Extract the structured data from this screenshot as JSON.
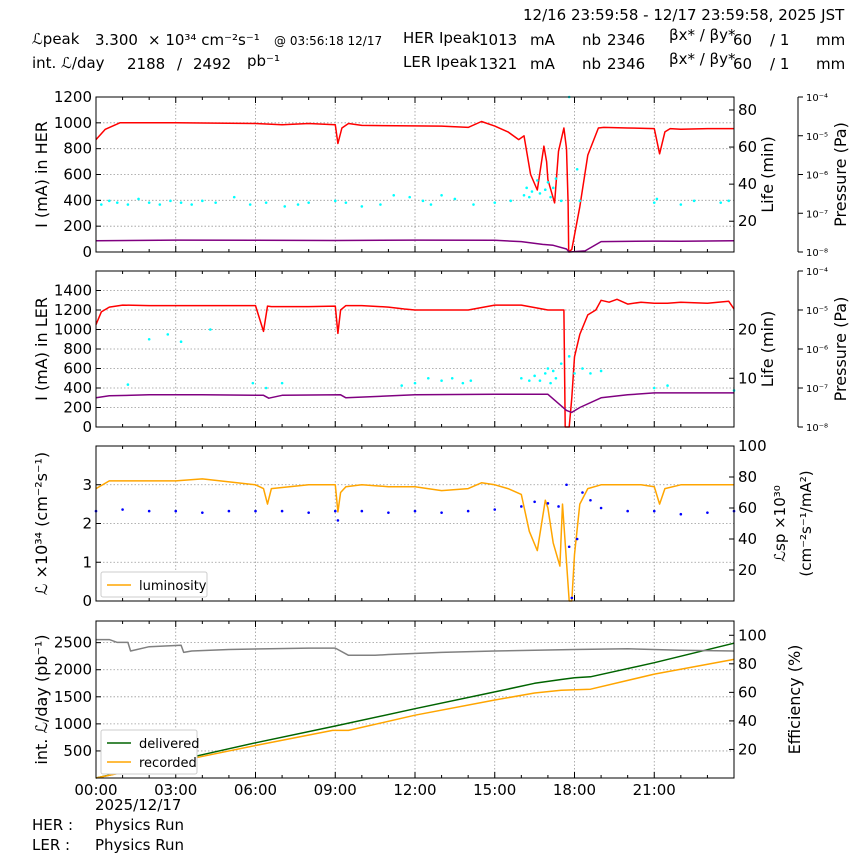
{
  "header": {
    "date_range": "12/16 23:59:58 - 12/17 23:59:58, 2025 JST",
    "lpeak_label": "ℒpeak",
    "lpeak_value": "3.300",
    "lpeak_unit": "× 10³⁴ cm⁻²s⁻¹",
    "lpeak_time": "@ 03:56:18 12/17",
    "intl_label": "int. ℒ/day",
    "intl_value1": "2188",
    "intl_sep": "/",
    "intl_value2": "2492",
    "intl_unit": "pb⁻¹",
    "her_label": "HER Ipeak",
    "her_value": "1013",
    "her_unit": "mA",
    "her_nb_label": "nb",
    "her_nb": "2346",
    "her_beta_label": "βx* / βy*",
    "her_beta_x": "60",
    "her_beta_y": "/ 1",
    "her_beta_unit": "mm",
    "ler_label": "LER Ipeak",
    "ler_value": "1321",
    "ler_unit": "mA",
    "ler_nb_label": "nb",
    "ler_nb": "2346",
    "ler_beta_label": "βx* / βy*",
    "ler_beta_x": "60",
    "ler_beta_y": "/ 1",
    "ler_beta_unit": "mm"
  },
  "footer": {
    "date": "2025/12/17",
    "her_label": "HER :",
    "her_status": "Physics Run",
    "ler_label": "LER :",
    "ler_status": "Physics Run"
  },
  "colors": {
    "red": "#ff0000",
    "cyan": "#00ffff",
    "purple": "#800080",
    "orange": "#ffa500",
    "blue": "#0000ff",
    "green": "#006400",
    "gray": "#808080"
  },
  "chart_data": [
    {
      "type": "line",
      "ylabel": "I (mA) in HER",
      "y2label": "Life (min)",
      "y3label": "Pressure (Pa)",
      "ylim": [
        0,
        1200
      ],
      "yticks": [
        0,
        200,
        400,
        600,
        800,
        1000,
        1200
      ],
      "y2lim": [
        3.4,
        87
      ],
      "y2ticks": [
        20,
        40,
        60,
        80
      ],
      "y3ticks": [
        "10⁻⁸",
        "10⁻⁷",
        "10⁻⁶",
        "10⁻⁵",
        "10⁻⁴"
      ],
      "xlim": [
        0,
        24
      ],
      "series": [
        {
          "name": "HER current",
          "axis": "y",
          "color": "#ff0000",
          "x": [
            0,
            0.35,
            0.9,
            3,
            6,
            7,
            8,
            9.0,
            9.1,
            9.25,
            9.5,
            10,
            13,
            14,
            14.5,
            15.0,
            15.5,
            15.9,
            16.1,
            16.35,
            16.6,
            16.85,
            16.95,
            17.0,
            17.25,
            17.4,
            17.6,
            17.7,
            17.76,
            17.78,
            17.9,
            18.2,
            18.5,
            18.9,
            19.1,
            20,
            21.0,
            21.2,
            21.4,
            21.6,
            22,
            23,
            24
          ],
          "y": [
            870,
            950,
            1000,
            1000,
            995,
            985,
            995,
            985,
            840,
            960,
            995,
            980,
            975,
            965,
            1010,
            975,
            930,
            870,
            900,
            600,
            480,
            820,
            700,
            560,
            380,
            780,
            960,
            800,
            380,
            0,
            20,
            350,
            750,
            960,
            965,
            960,
            955,
            760,
            930,
            955,
            950,
            955,
            955
          ]
        },
        {
          "name": "HER lifetime",
          "axis": "y2",
          "color": "#800080",
          "x": [
            0,
            3,
            6,
            9,
            12,
            15,
            16,
            16.8,
            17.2,
            17.7,
            17.8,
            18.4,
            19,
            21,
            22,
            24
          ],
          "y": [
            9.5,
            9.8,
            9.7,
            9.6,
            9.8,
            9.7,
            9.0,
            7.5,
            7.0,
            5.0,
            3.4,
            4.0,
            9.0,
            9.3,
            9.2,
            9.5
          ]
        },
        {
          "name": "HER pressure",
          "axis": "y3",
          "color": "#00ffff",
          "style": "dots",
          "x": [
            0.2,
            0.5,
            0.8,
            1.2,
            1.6,
            2.0,
            2.4,
            2.8,
            3.2,
            3.6,
            4.0,
            4.5,
            5.2,
            5.8,
            6.4,
            7.1,
            7.6,
            8.0,
            9.0,
            9.4,
            10.0,
            10.7,
            11.2,
            11.8,
            12.3,
            12.6,
            13.0,
            13.5,
            14.2,
            15.0,
            15.6,
            16.1,
            16.2,
            16.3,
            16.4,
            16.6,
            16.7,
            16.9,
            17.0,
            17.1,
            17.2,
            17.3,
            17.5,
            17.8,
            18.1,
            18.2,
            21.0,
            21.1,
            22.0,
            22.5,
            23.5,
            23.8
          ],
          "y": [
            29,
            31,
            30,
            29,
            32,
            30,
            29,
            31,
            30,
            29,
            31,
            30,
            33,
            29,
            30,
            28,
            29,
            30,
            31,
            30,
            28,
            29,
            34,
            33,
            31,
            29,
            34,
            32,
            29,
            30,
            31,
            34,
            38,
            33,
            36,
            42,
            35,
            37,
            41,
            33,
            38,
            43,
            31,
            87,
            48,
            31,
            30,
            32,
            29,
            31,
            30,
            31
          ]
        }
      ]
    },
    {
      "type": "line",
      "ylabel": "I (mA) in LER",
      "y2label": "Life (min)",
      "y3label": "Pressure (Pa)",
      "ylim": [
        0,
        1600
      ],
      "yticks": [
        0,
        200,
        400,
        600,
        800,
        1000,
        1200,
        1400
      ],
      "y2lim": [
        0,
        32
      ],
      "y2ticks": [
        10,
        20
      ],
      "y3ticks": [
        "10⁻⁸",
        "10⁻⁷",
        "10⁻⁶",
        "10⁻⁵",
        "10⁻⁴"
      ],
      "xlim": [
        0,
        24
      ],
      "series": [
        {
          "name": "LER current",
          "axis": "y",
          "color": "#ff0000",
          "x": [
            0,
            0.2,
            0.5,
            1.0,
            2.0,
            3.0,
            6.0,
            6.3,
            6.45,
            6.6,
            8.0,
            9.0,
            9.1,
            9.2,
            9.4,
            10.0,
            11.0,
            11.6,
            12.0,
            13.0,
            14.0,
            15.0,
            16.0,
            17.0,
            17.5,
            17.6,
            17.65,
            17.8,
            17.9,
            18.0,
            18.2,
            18.5,
            18.8,
            19.0,
            19.3,
            19.6,
            20.0,
            20.5,
            21.0,
            21.5,
            22.0,
            23.0,
            23.8,
            24.0
          ],
          "y": [
            1050,
            1180,
            1230,
            1250,
            1245,
            1245,
            1245,
            980,
            1240,
            1235,
            1235,
            1240,
            960,
            1200,
            1245,
            1245,
            1230,
            1210,
            1200,
            1200,
            1200,
            1250,
            1250,
            1200,
            1200,
            1200,
            0,
            0,
            300,
            720,
            950,
            1150,
            1200,
            1300,
            1280,
            1310,
            1260,
            1280,
            1270,
            1270,
            1280,
            1270,
            1290,
            1210
          ]
        },
        {
          "name": "LER lifetime",
          "axis": "y2",
          "color": "#800080",
          "x": [
            0,
            0.5,
            2,
            4,
            6.3,
            6.5,
            7,
            9.2,
            9.4,
            12,
            15,
            17,
            17.7,
            17.9,
            18.2,
            19,
            20,
            21,
            22,
            24
          ],
          "y": [
            6.0,
            6.4,
            6.6,
            6.6,
            6.5,
            5.9,
            6.5,
            6.6,
            6.0,
            6.6,
            6.7,
            6.7,
            3.4,
            3.0,
            4.0,
            6.0,
            6.6,
            7.0,
            7.0,
            7.0
          ]
        },
        {
          "name": "LER pressure",
          "axis": "y3",
          "color": "#00ffff",
          "style": "dots",
          "x": [
            1.2,
            2.0,
            2.7,
            3.2,
            4.3,
            5.9,
            6.4,
            7.0,
            11.5,
            12.0,
            12.5,
            13.0,
            13.4,
            13.8,
            14.1,
            16.0,
            16.3,
            16.5,
            16.7,
            16.9,
            17.0,
            17.1,
            17.2,
            17.3,
            17.5,
            17.8,
            18.0,
            18.3,
            18.6,
            19.0,
            21.0,
            21.5,
            24.0
          ],
          "y": [
            8.7,
            18.0,
            19.0,
            17.5,
            20.0,
            9.0,
            8.0,
            9.0,
            8.5,
            9.0,
            10.0,
            9.5,
            10.0,
            9.0,
            9.5,
            10.0,
            9.5,
            10.5,
            9.5,
            11.0,
            12.0,
            9.0,
            11.5,
            10.0,
            13.0,
            14.5,
            11.0,
            12.0,
            11.0,
            11.5,
            8.0,
            8.5,
            7.5
          ]
        }
      ]
    },
    {
      "type": "line",
      "ylabel": "ℒ ×10³⁴ (cm⁻²s⁻¹)",
      "y2label": "ℒsp ×10³⁰ (cm⁻²s⁻¹/mA²)",
      "ylim": [
        0,
        4
      ],
      "yticks": [
        0,
        1,
        2,
        3
      ],
      "y2lim": [
        0,
        100
      ],
      "y2ticks": [
        20,
        40,
        60,
        80,
        100
      ],
      "xlim": [
        0,
        24
      ],
      "legend": {
        "position": "bottom-left",
        "entries": [
          "luminosity"
        ]
      },
      "series": [
        {
          "name": "luminosity",
          "axis": "y",
          "color": "#ffa500",
          "x": [
            0,
            0.5,
            1.5,
            3,
            4,
            6,
            6.3,
            6.45,
            6.6,
            8,
            9.0,
            9.1,
            9.2,
            9.4,
            10,
            11,
            12,
            13,
            14,
            14.5,
            15,
            15.5,
            16.0,
            16.3,
            16.6,
            16.9,
            17.0,
            17.2,
            17.45,
            17.55,
            17.8,
            17.9,
            18.0,
            18.2,
            18.5,
            19.0,
            20,
            20.5,
            21.0,
            21.2,
            21.4,
            22,
            23,
            24
          ],
          "y": [
            2.9,
            3.1,
            3.1,
            3.1,
            3.15,
            3.0,
            2.9,
            2.5,
            2.9,
            3.0,
            3.0,
            2.3,
            2.8,
            2.95,
            3.0,
            2.95,
            2.95,
            2.85,
            2.9,
            3.05,
            3.0,
            2.9,
            2.75,
            1.8,
            1.3,
            2.6,
            2.4,
            1.5,
            0.9,
            2.5,
            0.0,
            0.0,
            1.2,
            2.5,
            2.9,
            3.0,
            3.0,
            3.0,
            2.95,
            2.5,
            2.9,
            3.0,
            3.0,
            3.0
          ]
        },
        {
          "name": "specific luminosity",
          "axis": "y2",
          "color": "#0000ff",
          "style": "dots",
          "x": [
            0,
            1,
            2,
            3,
            4,
            5,
            6,
            7,
            8,
            9,
            9.1,
            10,
            11,
            12,
            13,
            14,
            15,
            16,
            16.5,
            17,
            17.4,
            17.7,
            17.8,
            17.9,
            18.1,
            18.3,
            18.6,
            19,
            20,
            21,
            22,
            23,
            24
          ],
          "y": [
            58,
            59,
            58,
            58,
            57,
            58,
            58,
            58,
            57,
            58,
            52,
            58,
            57,
            58,
            57,
            58,
            59,
            61,
            64,
            63,
            61,
            75,
            35,
            2,
            40,
            70,
            65,
            60,
            58,
            58,
            56,
            57,
            58
          ]
        }
      ]
    },
    {
      "type": "line",
      "ylabel": "int. ℒ/day (pb⁻¹)",
      "y2label": "Efficiency (%)",
      "ylim": [
        0,
        2900
      ],
      "yticks": [
        500,
        1000,
        1500,
        2000,
        2500
      ],
      "y2lim": [
        0,
        110
      ],
      "y2ticks": [
        20,
        40,
        60,
        80,
        100
      ],
      "xlim": [
        0,
        24
      ],
      "xticks": [
        "00:00",
        "03:00",
        "06:00",
        "09:00",
        "12:00",
        "15:00",
        "18:00",
        "21:00"
      ],
      "legend": {
        "position": "bottom-left",
        "entries": [
          "delivered",
          "recorded"
        ]
      },
      "series": [
        {
          "name": "delivered",
          "axis": "y",
          "color": "#006400",
          "x": [
            0,
            3,
            6,
            9,
            12,
            15,
            16.5,
            17.5,
            18.0,
            18.6,
            21,
            24
          ],
          "y": [
            0,
            320,
            650,
            960,
            1280,
            1590,
            1750,
            1820,
            1850,
            1870,
            2130,
            2490
          ]
        },
        {
          "name": "recorded",
          "axis": "y",
          "color": "#ffa500",
          "x": [
            0,
            3,
            6,
            8.9,
            9.5,
            12,
            15,
            16.5,
            17.5,
            18.6,
            21,
            24
          ],
          "y": [
            0,
            300,
            600,
            880,
            880,
            1160,
            1440,
            1570,
            1620,
            1640,
            1920,
            2190
          ]
        },
        {
          "name": "efficiency",
          "axis": "y2",
          "color": "#808080",
          "x": [
            0,
            0.5,
            0.8,
            1.2,
            1.3,
            2,
            3.2,
            3.3,
            3.6,
            5,
            8,
            9.0,
            9.5,
            10,
            10.5,
            11,
            13,
            15,
            18,
            20,
            22,
            24
          ],
          "y": [
            97,
            97,
            95,
            95,
            89,
            92,
            93,
            88,
            89,
            90,
            91,
            91,
            86,
            86,
            86,
            86.5,
            88,
            89,
            90,
            90.5,
            89.5,
            89
          ]
        }
      ]
    }
  ]
}
